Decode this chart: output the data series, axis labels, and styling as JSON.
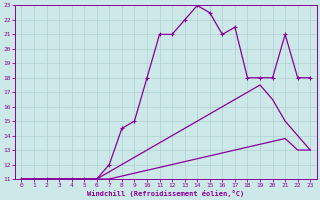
{
  "xlabel": "Windchill (Refroidissement éolien,°C)",
  "xlim": [
    -0.5,
    23.5
  ],
  "ylim": [
    11,
    23
  ],
  "xticks": [
    0,
    1,
    2,
    3,
    4,
    5,
    6,
    7,
    8,
    9,
    10,
    11,
    12,
    13,
    14,
    15,
    16,
    17,
    18,
    19,
    20,
    21,
    22,
    23
  ],
  "yticks": [
    11,
    12,
    13,
    14,
    15,
    16,
    17,
    18,
    19,
    20,
    21,
    22,
    23
  ],
  "bg_color": "#cde8e8",
  "grid_color": "#b0d0d0",
  "line_color": "#880099",
  "lines": [
    {
      "x": [
        0,
        1,
        2,
        3,
        4,
        5,
        6,
        7,
        8,
        9,
        10,
        11,
        12,
        13,
        14,
        15,
        16,
        17,
        18,
        19,
        20,
        21,
        22,
        23
      ],
      "y": [
        11,
        11,
        11,
        11,
        11,
        11,
        11,
        11,
        11.2,
        11.4,
        11.6,
        11.8,
        12.0,
        12.2,
        12.4,
        12.6,
        12.8,
        13.0,
        13.2,
        13.4,
        13.6,
        13.8,
        13.0,
        13.0
      ],
      "marker": false
    },
    {
      "x": [
        0,
        1,
        2,
        3,
        4,
        5,
        6,
        7,
        8,
        9,
        10,
        11,
        12,
        13,
        14,
        15,
        16,
        17,
        18,
        19,
        20,
        21,
        22,
        23
      ],
      "y": [
        11,
        11,
        11,
        11,
        11,
        11,
        11,
        11.5,
        12.0,
        12.5,
        13.0,
        13.5,
        14.0,
        14.5,
        15.0,
        15.5,
        16.0,
        16.5,
        17.0,
        17.5,
        16.5,
        15.0,
        14.0,
        13.0
      ],
      "marker": false
    },
    {
      "x": [
        0,
        1,
        2,
        3,
        4,
        5,
        6,
        7,
        8,
        9,
        10,
        11,
        12,
        13,
        14,
        15,
        16,
        17,
        18,
        19,
        20,
        21,
        22,
        23
      ],
      "y": [
        11,
        11,
        11,
        11,
        11,
        11,
        11,
        12,
        14.5,
        15.0,
        18.0,
        21.0,
        21.0,
        22.0,
        23.0,
        22.5,
        21.0,
        21.5,
        18.0,
        18.0,
        18.0,
        21.0,
        18.0,
        18.0
      ],
      "marker": true
    }
  ]
}
